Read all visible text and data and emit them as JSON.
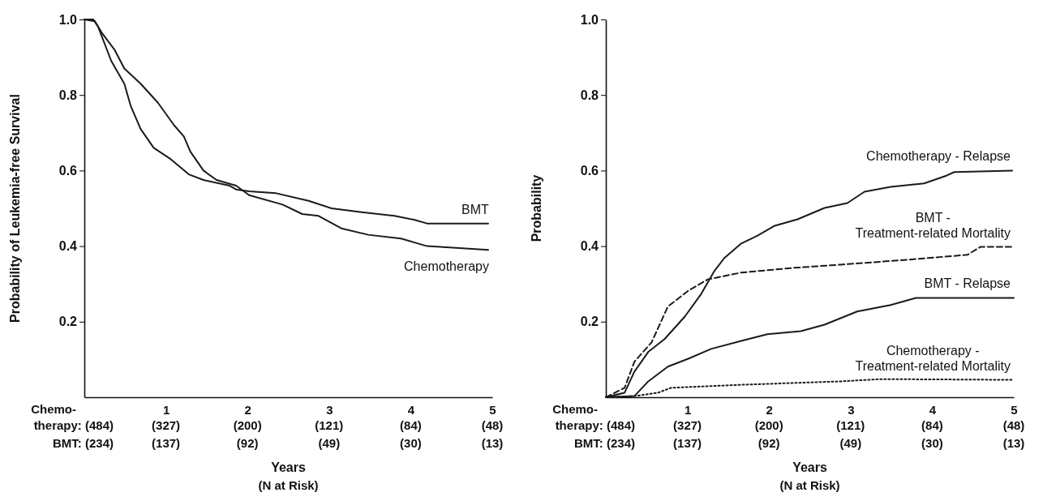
{
  "chart_data": [
    {
      "type": "line",
      "ylabel": "Probability of Leukemia-free Survival",
      "xlabel": "Years",
      "xlim": [
        0,
        5
      ],
      "xticks": [
        1,
        2,
        3,
        4,
        5
      ],
      "ylim": [
        0,
        1
      ],
      "yticks": [
        0.2,
        0.4,
        0.6,
        0.8,
        {
          "value": 1,
          "label": "1.0"
        }
      ],
      "marker": "none",
      "grid": false,
      "legend": false,
      "annotations": [
        "Chemo-",
        "therapy: (484)",
        "BMT: (234)",
        "(327)",
        "(137)",
        "(200)",
        "(92)",
        "(121)",
        "(49)",
        "(84)",
        "(30)",
        "(48)",
        "(13)",
        "(N at Risk)"
      ],
      "series": [
        {
          "name": "BMT",
          "color": "#1a1a1a",
          "line_style": "solid",
          "x": [
            0,
            0.11,
            0.17,
            0.33,
            0.49,
            0.57,
            0.69,
            0.85,
            1.06,
            1.28,
            1.46,
            1.78,
            1.86,
            2.02,
            2.35,
            2.75,
            3.03,
            3.4,
            3.8,
            4.04,
            4.2,
            4.95
          ],
          "values": [
            1,
            1,
            0.98,
            0.89,
            0.83,
            0.77,
            0.71,
            0.66,
            0.63,
            0.59,
            0.575,
            0.56,
            0.55,
            0.545,
            0.54,
            0.52,
            0.5,
            0.49,
            0.48,
            0.47,
            0.46,
            0.46
          ]
        },
        {
          "name": "Chemotherapy",
          "color": "#1a1a1a",
          "line_style": "solid",
          "x": [
            0,
            0.13,
            0.21,
            0.37,
            0.49,
            0.69,
            0.9,
            1.1,
            1.22,
            1.3,
            1.46,
            1.62,
            1.86,
            2.02,
            2.43,
            2.67,
            2.87,
            3.15,
            3.48,
            3.88,
            4.2,
            4.95
          ],
          "values": [
            1,
            0.995,
            0.966,
            0.92,
            0.87,
            0.83,
            0.78,
            0.72,
            0.69,
            0.65,
            0.6,
            0.575,
            0.56,
            0.535,
            0.51,
            0.485,
            0.48,
            0.447,
            0.43,
            0.42,
            0.4,
            0.39
          ]
        }
      ]
    },
    {
      "type": "line",
      "ylabel": "Probability",
      "xlabel": "Years",
      "xlim": [
        0,
        5
      ],
      "xticks": [
        1,
        2,
        3,
        4,
        5
      ],
      "ylim": [
        0,
        1
      ],
      "yticks": [
        0.2,
        0.4,
        0.6,
        0.8,
        {
          "value": 1,
          "label": "1.0"
        }
      ],
      "marker": "none",
      "grid": false,
      "legend": false,
      "annotations": [
        "Chemo-",
        "therapy: (484)",
        "BMT: (234)",
        "(327)",
        "(137)",
        "(200)",
        "(92)",
        "(121)",
        "(49)",
        "(84)",
        "(30)",
        "(48)",
        "(13)",
        "(N at Risk)"
      ],
      "series": [
        {
          "name": "Chemotherapy - Relapse",
          "color": "#1a1a1a",
          "line_style": "solid",
          "x": [
            0,
            0.23,
            0.35,
            0.52,
            0.72,
            0.97,
            1.17,
            1.33,
            1.45,
            1.66,
            1.86,
            2.07,
            2.35,
            2.68,
            2.96,
            3.17,
            3.49,
            3.9,
            4.18,
            4.27,
            4.98
          ],
          "values": [
            0,
            0.012,
            0.068,
            0.12,
            0.154,
            0.214,
            0.274,
            0.334,
            0.368,
            0.407,
            0.428,
            0.454,
            0.471,
            0.501,
            0.514,
            0.544,
            0.557,
            0.566,
            0.587,
            0.596,
            0.6
          ]
        },
        {
          "name": "BMT - Treatment-related Mortality",
          "color": "#1a1a1a",
          "line_style": "dashed",
          "x": [
            0,
            0.23,
            0.35,
            0.56,
            0.76,
            1.01,
            1.25,
            1.66,
            2.27,
            2.88,
            3.7,
            4.43,
            4.59,
            4.98
          ],
          "values": [
            0,
            0.025,
            0.094,
            0.145,
            0.24,
            0.282,
            0.312,
            0.33,
            0.342,
            0.351,
            0.364,
            0.377,
            0.398,
            0.398
          ]
        },
        {
          "name": "BMT - Relapse",
          "color": "#1a1a1a",
          "line_style": "solid",
          "x": [
            0,
            0.35,
            0.52,
            0.76,
            1.01,
            1.29,
            1.66,
            1.98,
            2.39,
            2.68,
            3.08,
            3.49,
            3.8,
            5
          ],
          "values": [
            0,
            0.003,
            0.042,
            0.081,
            0.102,
            0.128,
            0.149,
            0.167,
            0.175,
            0.192,
            0.227,
            0.244,
            0.263,
            0.263
          ]
        },
        {
          "name": "Chemotherapy - Treatment-related Mortality",
          "color": "#1a1a1a",
          "line_style": "dotted",
          "x": [
            0,
            0.35,
            0.64,
            0.8,
            1.66,
            2.88,
            3.37,
            5
          ],
          "values": [
            0,
            0.003,
            0.012,
            0.025,
            0.033,
            0.042,
            0.048,
            0.046
          ]
        }
      ]
    }
  ]
}
